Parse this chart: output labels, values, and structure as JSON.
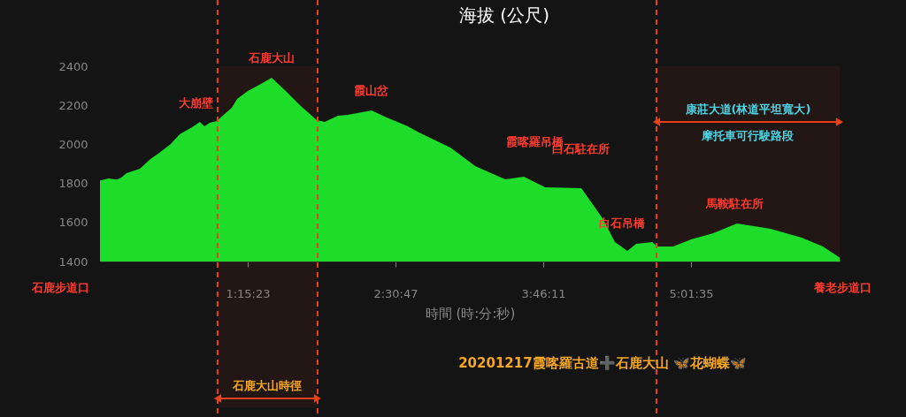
{
  "chart_data": {
    "type": "area",
    "title": "海拔 (公尺)",
    "xlabel": "時間 (時:分:秒)",
    "xlim": [
      0,
      6.291
    ],
    "ylim": [
      1400,
      2400
    ],
    "xticks": [
      {
        "value": 1.2564,
        "label": "1:15:23"
      },
      {
        "value": 2.5131,
        "label": "2:30:47"
      },
      {
        "value": 3.7697,
        "label": "3:46:11"
      },
      {
        "value": 5.0264,
        "label": "5:01:35"
      }
    ],
    "yticks": [
      1400,
      1600,
      1800,
      2000,
      2200,
      2400
    ],
    "grid": false,
    "series": [
      {
        "color": "#1edc2a",
        "x": [
          0,
          0.075,
          0.143,
          0.181,
          0.226,
          0.339,
          0.429,
          0.504,
          0.602,
          0.677,
          0.783,
          0.85,
          0.888,
          0.933,
          0.993,
          1.069,
          1.121,
          1.166,
          1.257,
          1.355,
          1.46,
          1.58,
          1.708,
          1.844,
          1.911,
          2.024,
          2.107,
          2.31,
          2.438,
          2.611,
          2.717,
          2.98,
          3.191,
          3.447,
          3.605,
          3.785,
          4.094,
          4.274,
          4.38,
          4.485,
          4.56,
          4.696,
          4.741,
          4.876,
          5.027,
          5.215,
          5.418,
          5.704,
          5.968,
          6.148,
          6.291
        ],
        "values": [
          1815,
          1825,
          1820,
          1830,
          1852,
          1875,
          1925,
          1957,
          2002,
          2052,
          2088,
          2115,
          2092,
          2110,
          2120,
          2160,
          2187,
          2233,
          2273,
          2305,
          2341,
          2273,
          2196,
          2124,
          2115,
          2147,
          2151,
          2174,
          2138,
          2095,
          2060,
          1984,
          1889,
          1821,
          1834,
          1780,
          1776,
          1622,
          1500,
          1454,
          1490,
          1500,
          1477,
          1477,
          1513,
          1545,
          1595,
          1567,
          1522,
          1477,
          1420
        ]
      }
    ],
    "ref_lines": [
      {
        "axis": "x",
        "value": 1.0,
        "color": "#e8401c",
        "line_style": "dashed"
      },
      {
        "axis": "x",
        "value": 1.851,
        "color": "#e8401c",
        "line_style": "dashed"
      },
      {
        "axis": "x",
        "value": 4.733,
        "color": "#e8401c",
        "line_style": "dashed"
      }
    ],
    "bands": [
      {
        "axis": "x",
        "from": 1.0,
        "to": 1.851,
        "label": "石鹿大山時徑",
        "color": "#e8401c"
      },
      {
        "axis": "x",
        "from": 4.733,
        "to": 6.291,
        "label": "康莊大道(林道平坦寬大)\n摩托車可行駛路段",
        "color": "#e8401c"
      }
    ],
    "annotations": [
      {
        "text": "大崩壁",
        "x": 0.82,
        "y": 2110
      },
      {
        "text": "石鹿大山",
        "x": 1.46,
        "y": 2341
      },
      {
        "text": "霞山岔",
        "x": 2.31,
        "y": 2174
      },
      {
        "text": "霞喀羅吊橋",
        "x": 3.7,
        "y": 1812
      },
      {
        "text": "白石駐在所",
        "x": 4.09,
        "y": 1776
      },
      {
        "text": "白石吊橋",
        "x": 4.44,
        "y": 1495
      },
      {
        "text": "馬鞍駐在所",
        "x": 5.4,
        "y": 1595
      },
      "石鹿步道口",
      "養老步道口",
      "20201217霞喀羅古道➕石鹿大山 🦋花蝴蝶🦋"
    ]
  }
}
